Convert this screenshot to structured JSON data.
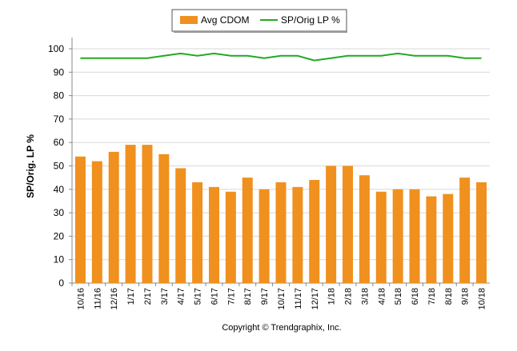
{
  "chart_data": {
    "type": "bar",
    "y_label": "SP/Orig. LP %",
    "footer": "Copyright © Trendgraphix, Inc.",
    "categories": [
      "10/16",
      "11/16",
      "12/16",
      "1/17",
      "2/17",
      "3/17",
      "4/17",
      "5/17",
      "6/17",
      "7/17",
      "8/17",
      "9/17",
      "10/17",
      "11/17",
      "12/17",
      "1/18",
      "2/18",
      "3/18",
      "4/18",
      "5/18",
      "6/18",
      "7/18",
      "8/18",
      "9/18",
      "10/18"
    ],
    "series": [
      {
        "name": "Avg CDOM",
        "type": "bar",
        "color": "#f0901e",
        "values": [
          54,
          52,
          56,
          59,
          59,
          55,
          49,
          43,
          41,
          39,
          45,
          40,
          43,
          41,
          44,
          50,
          50,
          46,
          39,
          40,
          40,
          37,
          38,
          45,
          43
        ]
      },
      {
        "name": "SP/Orig LP %",
        "type": "line",
        "color": "#22aa22",
        "values": [
          96,
          96,
          96,
          96,
          96,
          97,
          98,
          97,
          98,
          97,
          97,
          96,
          97,
          97,
          95,
          96,
          97,
          97,
          97,
          98,
          97,
          97,
          97,
          96,
          96
        ]
      }
    ],
    "ylim": [
      0,
      100
    ],
    "yticks": [
      0,
      10,
      20,
      30,
      40,
      50,
      60,
      70,
      80,
      90,
      100
    ],
    "grid": true,
    "legend": "top"
  }
}
